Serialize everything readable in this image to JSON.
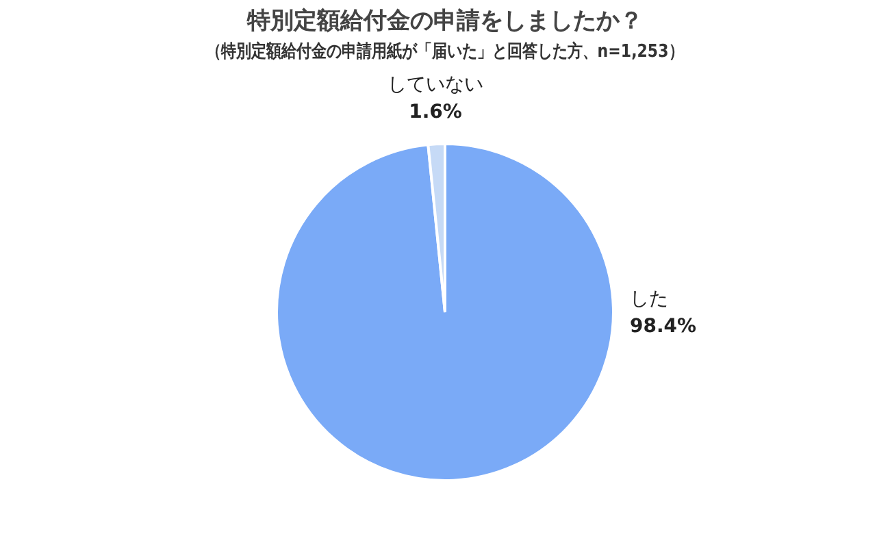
{
  "chart_data": {
    "type": "pie",
    "title": "特別定額給付金の申請をしましたか？",
    "subtitle": "（特別定額給付金の申請用紙が「届いた」と回答した方、n=1,253）",
    "categories": [
      "した",
      "していない"
    ],
    "values": [
      98.4,
      1.6
    ],
    "colors": [
      "#7aaaf7",
      "#c6daf6"
    ],
    "value_labels": [
      "98.4%",
      "1.6%"
    ],
    "legend": false
  }
}
